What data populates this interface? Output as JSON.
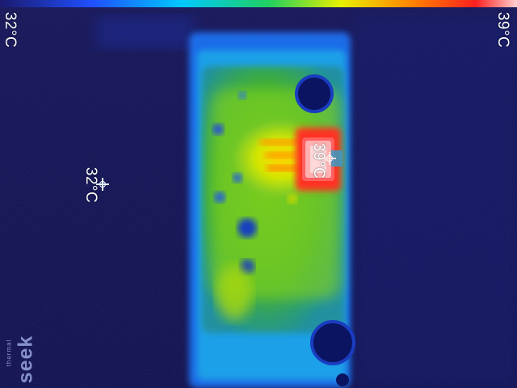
{
  "scale": {
    "min_label": "32°C",
    "max_label": "39°C",
    "colors": [
      "#1a1a6e",
      "#2050ff",
      "#00c8ff",
      "#20d060",
      "#e8f000",
      "#ff8000",
      "#ff2020",
      "#ffd0d0"
    ]
  },
  "spot_meter": {
    "label": "32°C",
    "icon": "crosshair-icon"
  },
  "hot_spot": {
    "label": "39°C",
    "icon": "crosshair-icon"
  },
  "brand": {
    "name": "seek",
    "sub": "thermal"
  }
}
